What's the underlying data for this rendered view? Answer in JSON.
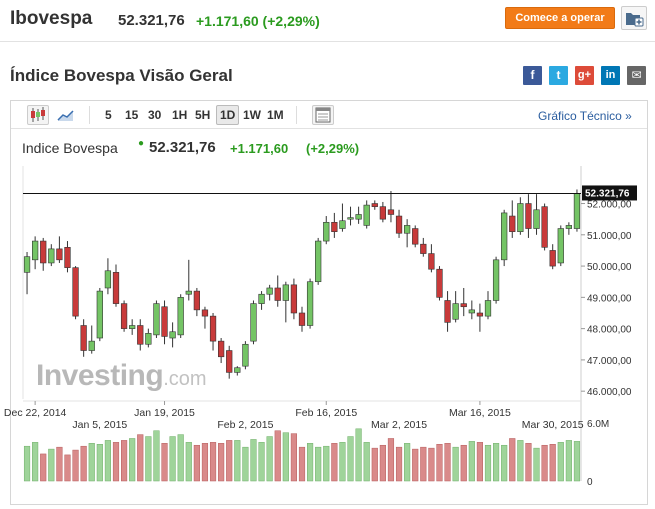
{
  "header": {
    "instrument_name": "Ibovespa",
    "price": "52.321,76",
    "change": "+1.171,60 (+2,29%)",
    "trade_button_label": "Comece a operar",
    "portfolio_icon": "add-to-portfolio-icon"
  },
  "section": {
    "title": "Índice Bovespa Visão Geral",
    "share_icons": [
      "facebook-icon",
      "twitter-icon",
      "google-plus-icon",
      "linkedin-icon",
      "mail-icon"
    ],
    "share_glyphs": {
      "facebook": "f",
      "twitter": "t",
      "google_plus": "g+",
      "linkedin": "in",
      "mail": "✉"
    }
  },
  "toolbar": {
    "chart_type_icons": [
      "candlestick-icon",
      "area-chart-icon"
    ],
    "timeframes": [
      "5",
      "15",
      "30",
      "1H",
      "5H",
      "1D",
      "1W",
      "1M"
    ],
    "active_timeframe": "1D",
    "table_icon": "data-table-icon",
    "technical_link": "Gráfico Técnico »"
  },
  "quote": {
    "name": "Indice Bovespa",
    "price": "52.321,76",
    "change": "+1.171,60",
    "change_pct": "(+2,29%)"
  },
  "watermark": {
    "brand": "Investing",
    "suffix": ".com"
  },
  "colors": {
    "up": "#2b9b1f",
    "candle_up": "#74c465",
    "candle_down": "#c83a3a",
    "accent": "#f27b18",
    "link": "#2a5d9f"
  },
  "chart_data": {
    "type": "candlestick",
    "title": "",
    "y_tick_labels": [
      "52.000,00",
      "51.000,00",
      "50.000,00",
      "49.000,00",
      "48.000,00",
      "47.000,00",
      "46.000,00"
    ],
    "y_ticks": [
      52000,
      51000,
      50000,
      49000,
      48000,
      47000,
      46000
    ],
    "ylim": [
      45750,
      53200
    ],
    "last_price_label": "52.321,76",
    "last_price": 52321.76,
    "x_labels_top": [
      "Dec 22, 2014",
      "Jan 19, 2015",
      "Feb 16, 2015",
      "Mar 16, 2015"
    ],
    "x_labels_top_index": [
      1,
      17,
      37,
      56
    ],
    "x_labels_bottom": [
      "Jan 5, 2015",
      "Feb 2, 2015",
      "Mar 2, 2015",
      "Mar 30, 2015"
    ],
    "x_labels_bottom_index": [
      9,
      27,
      46,
      65
    ],
    "volume_axis_labels": [
      "6.0M",
      "0"
    ],
    "volume_max": 6000000,
    "candles": [
      {
        "o": 49800,
        "h": 50450,
        "l": 49100,
        "c": 50300
      },
      {
        "o": 50200,
        "h": 50950,
        "l": 49900,
        "c": 50800
      },
      {
        "o": 50800,
        "h": 50900,
        "l": 49850,
        "c": 50100
      },
      {
        "o": 50100,
        "h": 50700,
        "l": 50000,
        "c": 50550
      },
      {
        "o": 50550,
        "h": 50950,
        "l": 50100,
        "c": 50200
      },
      {
        "o": 50600,
        "h": 50800,
        "l": 49800,
        "c": 49950
      },
      {
        "o": 49950,
        "h": 50000,
        "l": 48300,
        "c": 48400
      },
      {
        "o": 48100,
        "h": 48300,
        "l": 47100,
        "c": 47300
      },
      {
        "o": 47300,
        "h": 48100,
        "l": 47200,
        "c": 47600
      },
      {
        "o": 47700,
        "h": 49300,
        "l": 47600,
        "c": 49200
      },
      {
        "o": 49300,
        "h": 50250,
        "l": 49100,
        "c": 49850
      },
      {
        "o": 49800,
        "h": 50050,
        "l": 48700,
        "c": 48800
      },
      {
        "o": 48800,
        "h": 48900,
        "l": 47900,
        "c": 48000
      },
      {
        "o": 48000,
        "h": 48300,
        "l": 47800,
        "c": 48100
      },
      {
        "o": 48100,
        "h": 48300,
        "l": 47300,
        "c": 47500
      },
      {
        "o": 47500,
        "h": 48000,
        "l": 47400,
        "c": 47850
      },
      {
        "o": 47800,
        "h": 48900,
        "l": 47700,
        "c": 48800
      },
      {
        "o": 48700,
        "h": 48900,
        "l": 47500,
        "c": 47750
      },
      {
        "o": 47700,
        "h": 48200,
        "l": 47400,
        "c": 47900
      },
      {
        "o": 47800,
        "h": 49100,
        "l": 47700,
        "c": 49000
      },
      {
        "o": 49100,
        "h": 50200,
        "l": 48900,
        "c": 49200
      },
      {
        "o": 49200,
        "h": 49300,
        "l": 48400,
        "c": 48600
      },
      {
        "o": 48600,
        "h": 48700,
        "l": 48000,
        "c": 48400
      },
      {
        "o": 48400,
        "h": 48500,
        "l": 47300,
        "c": 47600
      },
      {
        "o": 47600,
        "h": 47700,
        "l": 46900,
        "c": 47100
      },
      {
        "o": 47300,
        "h": 47450,
        "l": 46400,
        "c": 46600
      },
      {
        "o": 46600,
        "h": 46800,
        "l": 46500,
        "c": 46750
      },
      {
        "o": 46800,
        "h": 47600,
        "l": 46700,
        "c": 47500
      },
      {
        "o": 47600,
        "h": 48900,
        "l": 47500,
        "c": 48800
      },
      {
        "o": 48800,
        "h": 49200,
        "l": 48600,
        "c": 49100
      },
      {
        "o": 49100,
        "h": 49400,
        "l": 48900,
        "c": 49300
      },
      {
        "o": 49300,
        "h": 49700,
        "l": 48700,
        "c": 48900
      },
      {
        "o": 48900,
        "h": 49500,
        "l": 48200,
        "c": 49400
      },
      {
        "o": 49400,
        "h": 49600,
        "l": 48300,
        "c": 48500
      },
      {
        "o": 48500,
        "h": 48700,
        "l": 47900,
        "c": 48100
      },
      {
        "o": 48100,
        "h": 49600,
        "l": 48000,
        "c": 49500
      },
      {
        "o": 49500,
        "h": 50900,
        "l": 49400,
        "c": 50800
      },
      {
        "o": 50800,
        "h": 51600,
        "l": 50700,
        "c": 51400
      },
      {
        "o": 51400,
        "h": 51700,
        "l": 50900,
        "c": 51100
      },
      {
        "o": 51200,
        "h": 52000,
        "l": 51100,
        "c": 51450
      },
      {
        "o": 51500,
        "h": 51900,
        "l": 51300,
        "c": 51550
      },
      {
        "o": 51500,
        "h": 51900,
        "l": 51350,
        "c": 51650
      },
      {
        "o": 51300,
        "h": 52100,
        "l": 51200,
        "c": 51950
      },
      {
        "o": 52000,
        "h": 52100,
        "l": 51800,
        "c": 51900
      },
      {
        "o": 51900,
        "h": 52050,
        "l": 51400,
        "c": 51500
      },
      {
        "o": 51800,
        "h": 52400,
        "l": 51400,
        "c": 51650
      },
      {
        "o": 51600,
        "h": 51800,
        "l": 50900,
        "c": 51050
      },
      {
        "o": 51050,
        "h": 51500,
        "l": 50600,
        "c": 51300
      },
      {
        "o": 51200,
        "h": 51300,
        "l": 50600,
        "c": 50700
      },
      {
        "o": 50700,
        "h": 50900,
        "l": 50300,
        "c": 50400
      },
      {
        "o": 50400,
        "h": 50700,
        "l": 49800,
        "c": 49900
      },
      {
        "o": 49900,
        "h": 50000,
        "l": 48900,
        "c": 49000
      },
      {
        "o": 48900,
        "h": 49200,
        "l": 47900,
        "c": 48200
      },
      {
        "o": 48300,
        "h": 49200,
        "l": 48200,
        "c": 48800
      },
      {
        "o": 48800,
        "h": 49300,
        "l": 48400,
        "c": 48700
      },
      {
        "o": 48500,
        "h": 48900,
        "l": 48300,
        "c": 48600
      },
      {
        "o": 48500,
        "h": 48800,
        "l": 47900,
        "c": 48400
      },
      {
        "o": 48400,
        "h": 49200,
        "l": 48300,
        "c": 48900
      },
      {
        "o": 48900,
        "h": 50300,
        "l": 48800,
        "c": 50200
      },
      {
        "o": 50200,
        "h": 51800,
        "l": 50000,
        "c": 51700
      },
      {
        "o": 51600,
        "h": 52100,
        "l": 50900,
        "c": 51100
      },
      {
        "o": 51100,
        "h": 52200,
        "l": 51000,
        "c": 52000
      },
      {
        "o": 52000,
        "h": 52300,
        "l": 50900,
        "c": 51200
      },
      {
        "o": 51200,
        "h": 52300,
        "l": 51000,
        "c": 51800
      },
      {
        "o": 51900,
        "h": 52000,
        "l": 50500,
        "c": 50600
      },
      {
        "o": 50500,
        "h": 50700,
        "l": 49900,
        "c": 50000
      },
      {
        "o": 50100,
        "h": 51300,
        "l": 50000,
        "c": 51200
      },
      {
        "o": 51200,
        "h": 51400,
        "l": 51000,
        "c": 51300
      },
      {
        "o": 51200,
        "h": 52450,
        "l": 51100,
        "c": 52321.76
      }
    ],
    "volumes": [
      3.6,
      4.0,
      2.8,
      3.3,
      3.5,
      2.7,
      3.2,
      3.6,
      3.9,
      3.8,
      4.2,
      4.0,
      4.2,
      4.4,
      4.8,
      4.6,
      5.2,
      3.9,
      4.6,
      4.8,
      4.0,
      3.7,
      3.9,
      4.0,
      3.9,
      4.2,
      4.2,
      3.5,
      4.3,
      4.0,
      4.6,
      5.2,
      5.0,
      4.9,
      3.5,
      3.9,
      3.5,
      3.6,
      3.9,
      4.0,
      4.6,
      5.4,
      4.0,
      3.4,
      3.7,
      4.4,
      3.5,
      3.9,
      3.3,
      3.5,
      3.4,
      3.8,
      3.9,
      3.5,
      3.7,
      4.1,
      4.0,
      3.7,
      3.9,
      3.7,
      4.4,
      4.2,
      3.9,
      3.4,
      3.7,
      3.8,
      4.0,
      4.2,
      4.1
    ]
  }
}
